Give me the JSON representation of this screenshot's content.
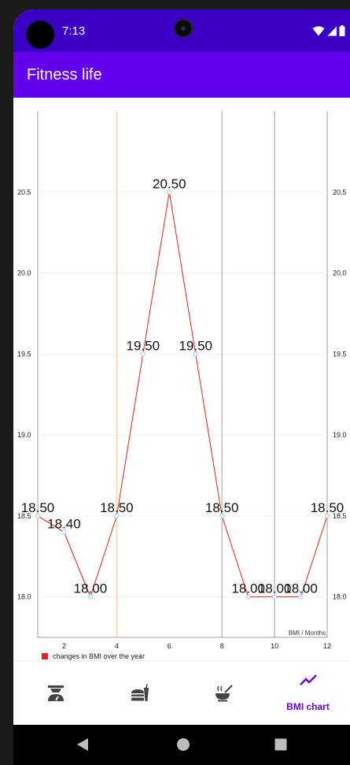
{
  "status_bar": {
    "time": "7:13",
    "icons": [
      "wifi-icon",
      "signal-icon",
      "battery-icon"
    ]
  },
  "app_bar": {
    "title": "Fitness life"
  },
  "chart_data": {
    "type": "line",
    "xlabel": "BMI / Months",
    "x": [
      1,
      2,
      3,
      4,
      5,
      6,
      7,
      8,
      9,
      10,
      11,
      12
    ],
    "x_ticks": [
      "2",
      "4",
      "6",
      "8",
      "10",
      "12"
    ],
    "x_tick_values": [
      2,
      4,
      6,
      8,
      10,
      12
    ],
    "xlim": [
      1,
      12
    ],
    "ylim": [
      17.75,
      21.0
    ],
    "y_ticks": [
      "18.0",
      "18.5",
      "19.0",
      "19.5",
      "20.0",
      "20.5"
    ],
    "y_tick_values": [
      18.0,
      18.5,
      19.0,
      19.5,
      20.0,
      20.5
    ],
    "series": [
      {
        "name": "changes in BMI over the year",
        "values": [
          18.5,
          18.4,
          18.0,
          18.5,
          19.5,
          20.5,
          19.5,
          18.5,
          18.0,
          18.0,
          18.0,
          18.5
        ],
        "labels": [
          "18.50",
          "18.40",
          "18.00",
          "18.50",
          "19.50",
          "20.50",
          "19.50",
          "18.50",
          "18.00",
          "18.00",
          "18.00",
          "18.50"
        ],
        "color": "#e2231a",
        "point_color": "#a8d8f0"
      }
    ],
    "limit_lines": [
      {
        "x": 4,
        "color": "#f5c89a"
      },
      {
        "x": 8,
        "color": "#9e9e9e"
      },
      {
        "x": 10,
        "color": "#9e9e9e"
      }
    ],
    "legend_position": "bottom-left"
  },
  "bottom_nav": {
    "items": [
      {
        "icon": "scale-icon",
        "label": ""
      },
      {
        "icon": "food-icon",
        "label": ""
      },
      {
        "icon": "soup-icon",
        "label": ""
      },
      {
        "icon": "trending-icon",
        "label": "BMI chart"
      }
    ],
    "active_color": "#6200ee"
  },
  "system_nav": {
    "buttons": [
      "back-icon",
      "home-icon",
      "recents-icon"
    ]
  }
}
